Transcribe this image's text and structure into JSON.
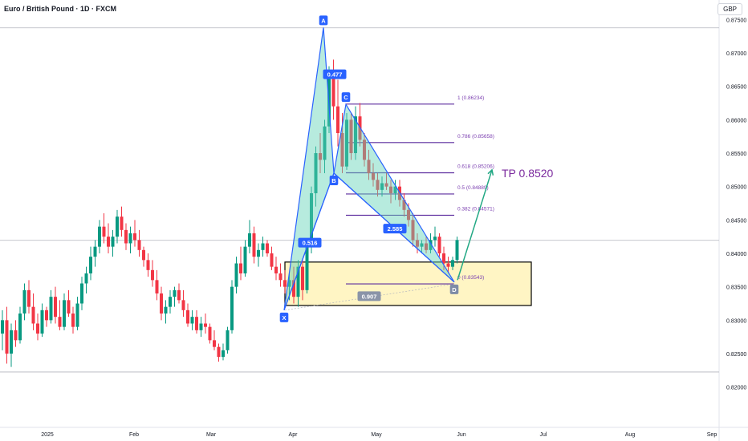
{
  "header": {
    "title": "Euro / British Pound · 1D · FXCM",
    "currency": "GBP"
  },
  "colors": {
    "up": "#089981",
    "down": "#f23645",
    "pattern_fill": "#5fd3b6",
    "pattern_line": "#2962ff",
    "fib_line": "#5b2b9e",
    "fib_text": "#7b3fb0",
    "zone_fill": "#fff5c4",
    "tp_arrow": "#22a884"
  },
  "chart_data": {
    "type": "candlestick",
    "title": "Euro / British Pound · 1D · FXCM",
    "ylim": [
      0.8175,
      0.8775
    ],
    "yticks": [
      "0.87500",
      "0.87000",
      "0.86500",
      "0.86000",
      "0.85500",
      "0.85000",
      "0.84500",
      "0.84000",
      "0.83500",
      "0.83000",
      "0.82500",
      "0.82000"
    ],
    "xticks": [
      {
        "label": "2025",
        "t": 59
      },
      {
        "label": "Feb",
        "t": 167
      },
      {
        "label": "Mar",
        "t": 263
      },
      {
        "label": "Apr",
        "t": 365
      },
      {
        "label": "May",
        "t": 469
      },
      {
        "label": "Jun",
        "t": 575
      },
      {
        "label": "Jul",
        "t": 677
      },
      {
        "label": "Aug",
        "t": 785
      },
      {
        "label": "Sep",
        "t": 887
      }
    ],
    "series": [
      {
        "candles": [
          [
            0.828,
            0.8315,
            0.8255,
            0.83
          ],
          [
            0.83,
            0.832,
            0.8235,
            0.825
          ],
          [
            0.825,
            0.8295,
            0.823,
            0.8285
          ],
          [
            0.8285,
            0.83,
            0.826,
            0.827
          ],
          [
            0.827,
            0.832,
            0.8265,
            0.831
          ],
          [
            0.831,
            0.8355,
            0.83,
            0.8345
          ],
          [
            0.8345,
            0.836,
            0.831,
            0.832
          ],
          [
            0.832,
            0.834,
            0.8285,
            0.8295
          ],
          [
            0.8295,
            0.831,
            0.827,
            0.828
          ],
          [
            0.828,
            0.8325,
            0.8275,
            0.8315
          ],
          [
            0.8315,
            0.832,
            0.829,
            0.83
          ],
          [
            0.83,
            0.8345,
            0.8295,
            0.8335
          ],
          [
            0.8335,
            0.835,
            0.8295,
            0.8305
          ],
          [
            0.8305,
            0.833,
            0.8285,
            0.829
          ],
          [
            0.829,
            0.834,
            0.8285,
            0.833
          ],
          [
            0.833,
            0.8345,
            0.8305,
            0.831
          ],
          [
            0.831,
            0.832,
            0.828,
            0.829
          ],
          [
            0.829,
            0.8335,
            0.8285,
            0.8325
          ],
          [
            0.8325,
            0.8365,
            0.8315,
            0.8355
          ],
          [
            0.8355,
            0.838,
            0.834,
            0.837
          ],
          [
            0.837,
            0.841,
            0.836,
            0.8395
          ],
          [
            0.8395,
            0.842,
            0.838,
            0.841
          ],
          [
            0.841,
            0.845,
            0.84,
            0.844
          ],
          [
            0.844,
            0.846,
            0.8415,
            0.8425
          ],
          [
            0.8425,
            0.8445,
            0.84,
            0.841
          ],
          [
            0.841,
            0.8435,
            0.8395,
            0.8425
          ],
          [
            0.8425,
            0.8465,
            0.8415,
            0.8455
          ],
          [
            0.8455,
            0.847,
            0.8425,
            0.8435
          ],
          [
            0.8435,
            0.8445,
            0.8405,
            0.8415
          ],
          [
            0.8415,
            0.844,
            0.84,
            0.843
          ],
          [
            0.843,
            0.845,
            0.841,
            0.842
          ],
          [
            0.842,
            0.8435,
            0.8395,
            0.8405
          ],
          [
            0.8405,
            0.841,
            0.838,
            0.839
          ],
          [
            0.839,
            0.84,
            0.8365,
            0.8375
          ],
          [
            0.8375,
            0.839,
            0.835,
            0.836
          ],
          [
            0.836,
            0.8375,
            0.833,
            0.834
          ],
          [
            0.834,
            0.835,
            0.83,
            0.831
          ],
          [
            0.831,
            0.833,
            0.8295,
            0.832
          ],
          [
            0.832,
            0.8345,
            0.831,
            0.8335
          ],
          [
            0.8335,
            0.835,
            0.832,
            0.8345
          ],
          [
            0.8345,
            0.8355,
            0.8325,
            0.833
          ],
          [
            0.833,
            0.8345,
            0.8305,
            0.8315
          ],
          [
            0.8315,
            0.8325,
            0.829,
            0.8295
          ],
          [
            0.8295,
            0.8315,
            0.8285,
            0.8305
          ],
          [
            0.8305,
            0.8315,
            0.828,
            0.8285
          ],
          [
            0.8285,
            0.8305,
            0.8275,
            0.8295
          ],
          [
            0.8295,
            0.831,
            0.828,
            0.829
          ],
          [
            0.829,
            0.8295,
            0.8265,
            0.827
          ],
          [
            0.827,
            0.8285,
            0.8255,
            0.826
          ],
          [
            0.826,
            0.8265,
            0.8238,
            0.8245
          ],
          [
            0.8245,
            0.8265,
            0.824,
            0.8255
          ],
          [
            0.8255,
            0.829,
            0.825,
            0.8285
          ],
          [
            0.8285,
            0.836,
            0.828,
            0.835
          ],
          [
            0.835,
            0.8395,
            0.834,
            0.8385
          ],
          [
            0.8385,
            0.841,
            0.836,
            0.837
          ],
          [
            0.837,
            0.842,
            0.8365,
            0.841
          ],
          [
            0.841,
            0.845,
            0.84,
            0.843
          ],
          [
            0.843,
            0.844,
            0.8385,
            0.8395
          ],
          [
            0.8395,
            0.8415,
            0.838,
            0.8405
          ],
          [
            0.8405,
            0.8425,
            0.8395,
            0.8415
          ],
          [
            0.8415,
            0.842,
            0.8395,
            0.84
          ],
          [
            0.84,
            0.841,
            0.8375,
            0.838
          ],
          [
            0.838,
            0.8395,
            0.836,
            0.837
          ],
          [
            0.837,
            0.8385,
            0.835,
            0.836
          ],
          [
            0.836,
            0.8375,
            0.834,
            0.835
          ],
          [
            0.835,
            0.837,
            0.833,
            0.836
          ],
          [
            0.836,
            0.838,
            0.8325,
            0.8335
          ],
          [
            0.8335,
            0.839,
            0.832,
            0.838
          ],
          [
            0.838,
            0.839,
            0.833,
            0.8345
          ],
          [
            0.8345,
            0.842,
            0.834,
            0.841
          ],
          [
            0.841,
            0.85,
            0.84,
            0.849
          ],
          [
            0.849,
            0.856,
            0.847,
            0.855
          ],
          [
            0.855,
            0.858,
            0.852,
            0.854
          ],
          [
            0.854,
            0.86,
            0.852,
            0.859
          ],
          [
            0.859,
            0.868,
            0.858,
            0.867
          ],
          [
            0.867,
            0.869,
            0.86,
            0.862
          ],
          [
            0.862,
            0.866,
            0.856,
            0.858
          ],
          [
            0.858,
            0.861,
            0.852,
            0.853
          ],
          [
            0.853,
            0.861,
            0.8525,
            0.86
          ],
          [
            0.86,
            0.861,
            0.854,
            0.855
          ],
          [
            0.855,
            0.862,
            0.854,
            0.8605
          ],
          [
            0.8605,
            0.8625,
            0.856,
            0.857
          ],
          [
            0.857,
            0.858,
            0.853,
            0.854
          ],
          [
            0.854,
            0.8555,
            0.851,
            0.852
          ],
          [
            0.852,
            0.8535,
            0.85,
            0.851
          ],
          [
            0.851,
            0.852,
            0.8485,
            0.8495
          ],
          [
            0.8495,
            0.8515,
            0.8485,
            0.8505
          ],
          [
            0.8505,
            0.852,
            0.8495,
            0.85
          ],
          [
            0.85,
            0.851,
            0.8475,
            0.849
          ],
          [
            0.849,
            0.851,
            0.848,
            0.85
          ],
          [
            0.85,
            0.851,
            0.847,
            0.848
          ],
          [
            0.848,
            0.849,
            0.8455,
            0.8465
          ],
          [
            0.8465,
            0.8475,
            0.844,
            0.845
          ],
          [
            0.845,
            0.846,
            0.841,
            0.842
          ],
          [
            0.842,
            0.843,
            0.84,
            0.841
          ],
          [
            0.841,
            0.842,
            0.84,
            0.8415
          ],
          [
            0.8415,
            0.8425,
            0.84,
            0.8405
          ],
          [
            0.8405,
            0.843,
            0.84,
            0.842
          ],
          [
            0.842,
            0.844,
            0.841,
            0.8425
          ],
          [
            0.8425,
            0.843,
            0.8395,
            0.84
          ],
          [
            0.84,
            0.841,
            0.8375,
            0.8385
          ],
          [
            0.8385,
            0.8395,
            0.837,
            0.838
          ],
          [
            0.838,
            0.8395,
            0.8375,
            0.839
          ],
          [
            0.839,
            0.8425,
            0.8385,
            0.842
          ]
        ]
      }
    ],
    "pattern": {
      "points": [
        {
          "label": "X",
          "t": 354,
          "v": 0.8315
        },
        {
          "label": "A",
          "t": 403,
          "v": 0.8738
        },
        {
          "label": "B",
          "t": 416,
          "v": 0.852
        },
        {
          "label": "C",
          "t": 431,
          "v": 0.8623
        },
        {
          "label": "D",
          "t": 566,
          "v": 0.8357
        }
      ],
      "ratios": [
        {
          "label": "0.477",
          "t": 417,
          "v": 0.8668
        },
        {
          "label": "0.516",
          "t": 386,
          "v": 0.8416
        },
        {
          "label": "2.585",
          "t": 492,
          "v": 0.8437
        },
        {
          "label": "0.907",
          "t": 460,
          "v": 0.8336
        }
      ]
    },
    "fib_levels": [
      {
        "label": "1 (0.86234)",
        "value": 0.86234
      },
      {
        "label": "0.786 (0.85658)",
        "value": 0.85658
      },
      {
        "label": "0.618 (0.85206)",
        "value": 0.85206
      },
      {
        "label": "0.5 (0.84889)",
        "value": 0.84889
      },
      {
        "label": "0.382 (0.84571)",
        "value": 0.84571
      },
      {
        "label": "0 (0.83543)",
        "value": 0.83543
      }
    ],
    "zone": {
      "top": 0.8387,
      "bottom": 0.8322
    },
    "target": {
      "label": "TP 0.8520",
      "value": 0.852
    },
    "hlines": [
      0.87375,
      0.84195,
      0.82225
    ]
  }
}
